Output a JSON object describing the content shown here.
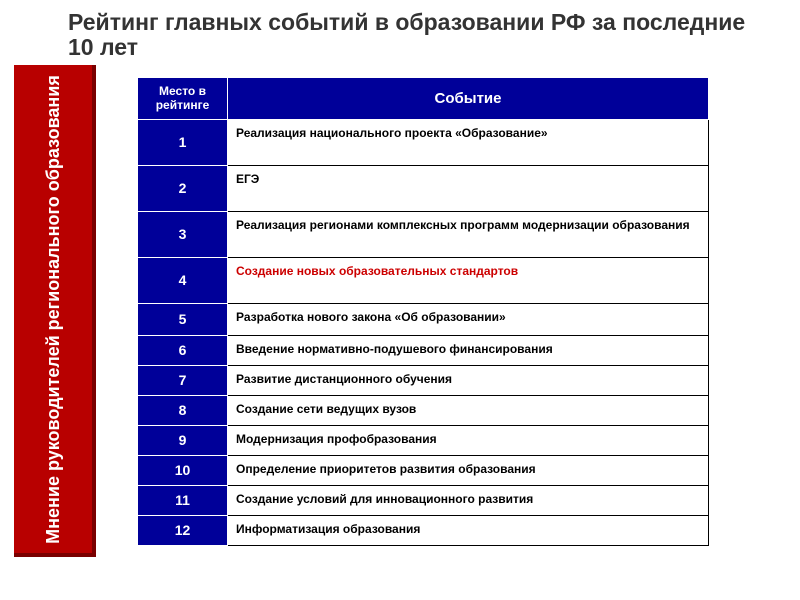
{
  "title": "Рейтинг главных событий в образовании РФ за последние 10 лет",
  "sidebar": "Мнение руководителей регионального образования",
  "columns": {
    "rank": "Место в рейтинге",
    "event": "Событие"
  },
  "rows": [
    {
      "rank": "1",
      "event": "Реализация национального проекта «Образование»",
      "highlight": false,
      "size": "tall"
    },
    {
      "rank": "2",
      "event": "ЕГЭ",
      "highlight": false,
      "size": "tall"
    },
    {
      "rank": "3",
      "event": "Реализация регионами комплексных программ модернизации образования",
      "highlight": false,
      "size": "tall"
    },
    {
      "rank": "4",
      "event": "Создание новых образовательных стандартов",
      "highlight": true,
      "size": "tall"
    },
    {
      "rank": "5",
      "event": "Разработка нового закона «Об образовании»",
      "highlight": false,
      "size": "med"
    },
    {
      "rank": "6",
      "event": "Введение нормативно-подушевого финансирования",
      "highlight": false,
      "size": "short"
    },
    {
      "rank": "7",
      "event": "Развитие дистанционного обучения",
      "highlight": false,
      "size": "short"
    },
    {
      "rank": "8",
      "event": "Создание сети ведущих вузов",
      "highlight": false,
      "size": "short"
    },
    {
      "rank": "9",
      "event": "Модернизация профобразования",
      "highlight": false,
      "size": "short"
    },
    {
      "rank": "10",
      "event": "Определение приоритетов развития образования",
      "highlight": false,
      "size": "short"
    },
    {
      "rank": "11",
      "event": "Создание условий для инновационного развития",
      "highlight": false,
      "size": "short"
    },
    {
      "rank": "12",
      "event": "Информатизация образования",
      "highlight": false,
      "size": "short"
    }
  ],
  "colors": {
    "header_bg": "#000099",
    "sidebar_bg": "#b80000",
    "highlight_text": "#cc0000"
  }
}
